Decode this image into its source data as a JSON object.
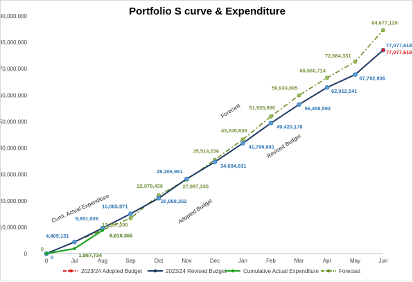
{
  "chart_data": {
    "type": "line",
    "title": "Portfolio S curve & Expenditure",
    "xlabel": "",
    "ylabel": "",
    "categories": [
      "0",
      "Jul",
      "Aug",
      "Sep",
      "Oct",
      "Nov",
      "Dec",
      "Jan",
      "Feb",
      "Mar",
      "Apr",
      "May",
      "Jun"
    ],
    "ylim": [
      0,
      90000000
    ],
    "yticks": [
      "0",
      "10,000,000",
      "20,000,000",
      "30,000,000",
      "40,000,000",
      "50,000,000",
      "60,000,000",
      "70,000,000",
      "80,000,000",
      "90,000,000"
    ],
    "grid": false,
    "legend_position": "bottom",
    "series": [
      {
        "name": "2023/24 Adopted Budget",
        "color": "#e31a1c",
        "style": "dash-dot",
        "values": [
          null,
          null,
          null,
          null,
          null,
          null,
          null,
          null,
          null,
          null,
          null,
          null,
          77077618
        ],
        "labels": [
          null,
          null,
          null,
          null,
          null,
          null,
          null,
          null,
          null,
          null,
          null,
          null,
          "77,077,618"
        ]
      },
      {
        "name": "2023/24 Revised Budget",
        "color": "#1f3864",
        "label_color": "#2e75b6",
        "style": "solid",
        "values": [
          0,
          4409131,
          9651026,
          15085971,
          20958262,
          28306961,
          34684831,
          41799881,
          49420178,
          56458592,
          62912541,
          67792936,
          77077618
        ],
        "labels": [
          "0",
          "4,409,131",
          "9,651,026",
          "15,085,971",
          "20,958,262",
          "28,306,961",
          "34,684,831",
          "41,799,881",
          "49,420,178",
          "56,458,592",
          "62,912,541",
          "67,792,936",
          "77,077,618"
        ]
      },
      {
        "name": "Cumulative Actual Expenditure",
        "color": "#1ea21e",
        "style": "solid",
        "values": [
          0,
          1867734,
          8810365,
          null,
          null,
          null,
          null,
          null,
          null,
          null,
          null,
          null,
          null
        ],
        "labels": [
          null,
          "1,867,734",
          "8,810,365",
          null,
          null,
          null,
          null,
          null,
          null,
          null,
          null,
          null,
          null
        ]
      },
      {
        "name": "Forecast",
        "color": "#6b8e23",
        "label_color": "#76923c",
        "style": "dash-dot",
        "values": [
          0,
          null,
          null,
          13397200,
          22078436,
          27997335,
          35514236,
          43240836,
          51935690,
          59930895,
          66560714,
          72684331,
          84677129
        ],
        "labels": [
          "0",
          null,
          null,
          "13,397,200",
          "22,078,436",
          "27,997,335",
          "35,514,236",
          "43,240,836",
          "51,935,690",
          "59,930,895",
          "66,560,714",
          "72,684,331",
          "84,677,129"
        ]
      }
    ],
    "annotations": [
      "Cumt. Actual Expenditure",
      "Adopted Budget",
      "Revised Budget",
      "Forecast"
    ]
  }
}
